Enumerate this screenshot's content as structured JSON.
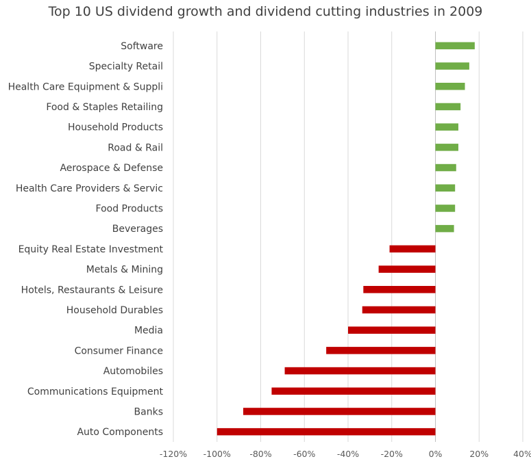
{
  "chart_data": {
    "type": "bar",
    "orientation": "horizontal",
    "title": "Top 10 US dividend growth and dividend cutting industries in 2009",
    "categories": [
      "Software",
      "Specialty Retail",
      "Health Care Equipment & Suppli",
      "Food & Staples Retailing",
      "Household Products",
      "Road & Rail",
      "Aerospace & Defense",
      "Health Care Providers & Servic",
      "Food Products",
      "Beverages",
      "Equity Real Estate Investment",
      "Metals & Mining",
      "Hotels, Restaurants & Leisure",
      "Household Durables",
      "Media",
      "Consumer Finance",
      "Automobiles",
      "Communications Equipment",
      "Banks",
      "Auto Components"
    ],
    "values": [
      18,
      15.5,
      13.5,
      11.5,
      10.5,
      10.5,
      9.5,
      9,
      9,
      8.5,
      -21,
      -26,
      -33,
      -33.5,
      -40,
      -50,
      -69,
      -75,
      -88,
      -100
    ],
    "xlim": [
      -120,
      40
    ],
    "xticks": [
      -120,
      -100,
      -80,
      -60,
      -40,
      -20,
      0,
      20,
      40
    ],
    "xtick_labels": [
      "-120%",
      "-100%",
      "-80%",
      "-60%",
      "-40%",
      "-20%",
      "0%",
      "20%",
      "40%"
    ],
    "xlabel": "",
    "ylabel": "",
    "grid": "vertical",
    "colors": {
      "positive": "#70ad47",
      "negative": "#c00000",
      "grid": "#d9d9d9",
      "axis": "#bfbfbf"
    }
  }
}
